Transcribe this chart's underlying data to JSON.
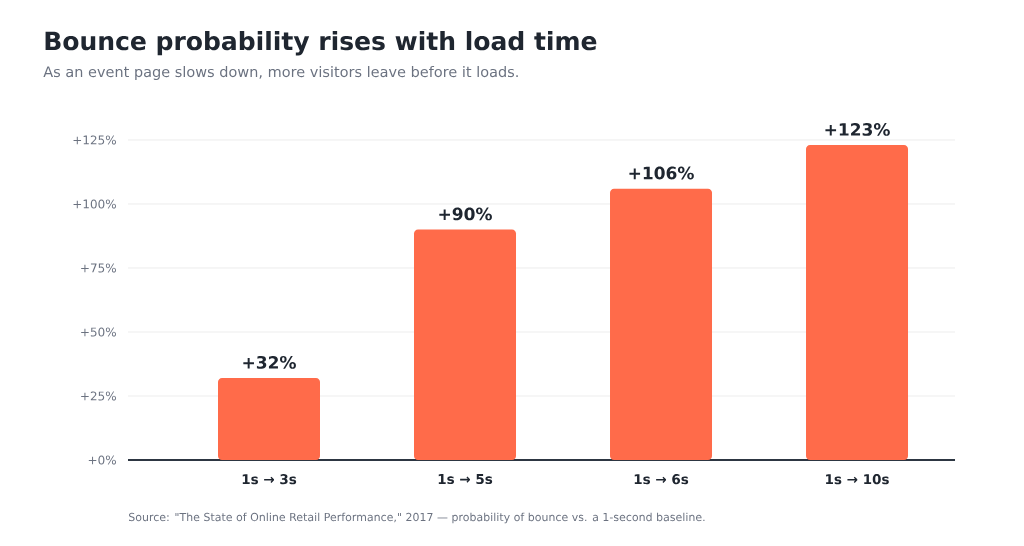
{
  "chart_data": {
    "type": "bar",
    "title": "Bounce probability rises with load time",
    "subtitle": "As an event page slows down, more visitors leave before it loads.",
    "categories": [
      "1s → 3s",
      "1s → 5s",
      "1s → 6s",
      "1s → 10s"
    ],
    "values": [
      32,
      90,
      106,
      123
    ],
    "value_labels": [
      "+32%",
      "+90%",
      "+106%",
      "+123%"
    ],
    "color": "#ff6b4a",
    "ylim": [
      0,
      125
    ],
    "yticks": [
      {
        "value": 0,
        "label": "+0%"
      },
      {
        "value": 25,
        "label": "+25%"
      },
      {
        "value": 50,
        "label": "+50%"
      },
      {
        "value": 75,
        "label": "+75%"
      },
      {
        "value": 100,
        "label": "+100%"
      },
      {
        "value": 125,
        "label": "+125%"
      }
    ],
    "grid": "y",
    "annotations": [
      "Source: \"The State of Online Retail Performance,\" 2017 — probability of bounce vs. a 1-second baseline."
    ]
  }
}
